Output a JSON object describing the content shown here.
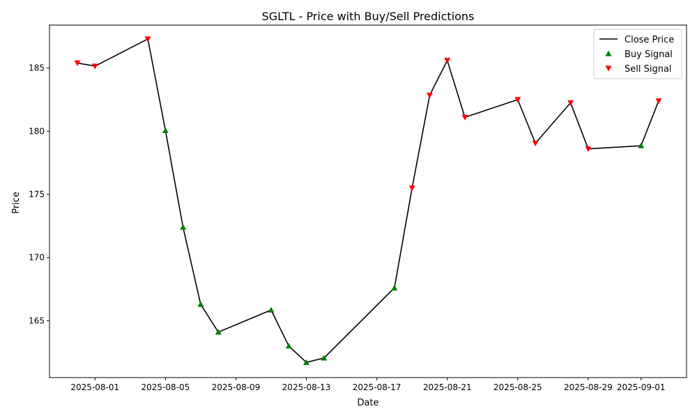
{
  "chart_data": {
    "type": "line",
    "title": "SGLTL - Price with Buy/Sell Predictions",
    "xlabel": "Date",
    "ylabel": "Price",
    "xlim": [
      "2025-07-29T10:00",
      "2025-09-03T14:00"
    ],
    "ylim": [
      160.5,
      188.4
    ],
    "x_ticks": [
      "2025-08-01",
      "2025-08-05",
      "2025-08-09",
      "2025-08-13",
      "2025-08-17",
      "2025-08-21",
      "2025-08-25",
      "2025-08-29",
      "2025-09-01"
    ],
    "y_ticks": [
      165,
      170,
      175,
      180,
      185
    ],
    "legend_position": "top-right",
    "series": [
      {
        "name": "Close Price",
        "kind": "line",
        "color": "#000000",
        "points": [
          {
            "x": "2025-07-31",
            "y": 185.4
          },
          {
            "x": "2025-08-01",
            "y": 185.15
          },
          {
            "x": "2025-08-04",
            "y": 187.3
          },
          {
            "x": "2025-08-05",
            "y": 180.05
          },
          {
            "x": "2025-08-06",
            "y": 172.4
          },
          {
            "x": "2025-08-07",
            "y": 166.3
          },
          {
            "x": "2025-08-08",
            "y": 164.1
          },
          {
            "x": "2025-08-11",
            "y": 165.85
          },
          {
            "x": "2025-08-12",
            "y": 163.0
          },
          {
            "x": "2025-08-13",
            "y": 161.7
          },
          {
            "x": "2025-08-14",
            "y": 162.05
          },
          {
            "x": "2025-08-18",
            "y": 167.6
          },
          {
            "x": "2025-08-19",
            "y": 175.5
          },
          {
            "x": "2025-08-20",
            "y": 182.85
          },
          {
            "x": "2025-08-21",
            "y": 185.6
          },
          {
            "x": "2025-08-22",
            "y": 181.1
          },
          {
            "x": "2025-08-25",
            "y": 182.5
          },
          {
            "x": "2025-08-26",
            "y": 179.05
          },
          {
            "x": "2025-08-28",
            "y": 182.25
          },
          {
            "x": "2025-08-29",
            "y": 178.6
          },
          {
            "x": "2025-09-01",
            "y": 178.85
          },
          {
            "x": "2025-09-02",
            "y": 182.4
          }
        ]
      },
      {
        "name": "Buy Signal",
        "kind": "scatter",
        "marker": "triangle-up",
        "color": "#008000",
        "points": [
          {
            "x": "2025-08-05",
            "y": 180.05
          },
          {
            "x": "2025-08-06",
            "y": 172.4
          },
          {
            "x": "2025-08-07",
            "y": 166.3
          },
          {
            "x": "2025-08-08",
            "y": 164.1
          },
          {
            "x": "2025-08-11",
            "y": 165.85
          },
          {
            "x": "2025-08-12",
            "y": 163.0
          },
          {
            "x": "2025-08-13",
            "y": 161.7
          },
          {
            "x": "2025-08-14",
            "y": 162.05
          },
          {
            "x": "2025-08-18",
            "y": 167.6
          },
          {
            "x": "2025-09-01",
            "y": 178.85
          }
        ]
      },
      {
        "name": "Sell Signal",
        "kind": "scatter",
        "marker": "triangle-down",
        "color": "#ff0000",
        "points": [
          {
            "x": "2025-07-31",
            "y": 185.4
          },
          {
            "x": "2025-08-01",
            "y": 185.15
          },
          {
            "x": "2025-08-04",
            "y": 187.3
          },
          {
            "x": "2025-08-19",
            "y": 175.5
          },
          {
            "x": "2025-08-20",
            "y": 182.85
          },
          {
            "x": "2025-08-21",
            "y": 185.6
          },
          {
            "x": "2025-08-22",
            "y": 181.1
          },
          {
            "x": "2025-08-25",
            "y": 182.5
          },
          {
            "x": "2025-08-26",
            "y": 179.05
          },
          {
            "x": "2025-08-28",
            "y": 182.25
          },
          {
            "x": "2025-08-29",
            "y": 178.6
          },
          {
            "x": "2025-09-02",
            "y": 182.4
          }
        ]
      }
    ]
  }
}
